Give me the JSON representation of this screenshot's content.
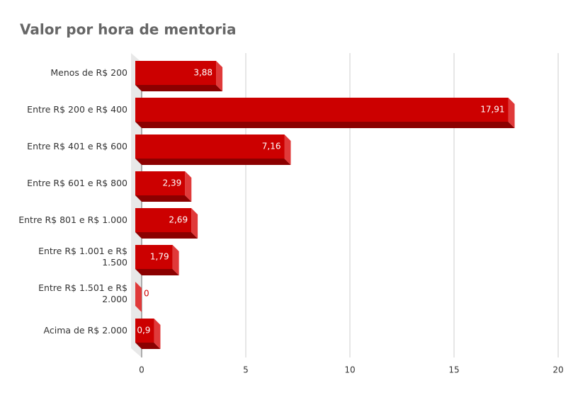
{
  "chart_data": {
    "type": "bar",
    "orientation": "horizontal",
    "title": "Valor por hora de mentoria",
    "categories": [
      "Menos de R$ 200",
      "Entre R$ 200 e R$ 400",
      "Entre R$ 401 e R$ 600",
      "Entre R$ 601 e R$ 800",
      "Entre R$ 801 e R$ 1.000",
      "Entre R$ 1.001 e R$ 1.500",
      "Entre R$ 1.501 e R$ 2.000",
      "Acima de R$ 2.000"
    ],
    "values": [
      3.88,
      17.91,
      7.16,
      2.39,
      2.69,
      1.79,
      0,
      0.9
    ],
    "value_labels": [
      "3,88",
      "17,91",
      "7,16",
      "2,39",
      "2,69",
      "1,79",
      "0",
      "0,9"
    ],
    "color": "#cc0000",
    "xlim": [
      0,
      20
    ],
    "xticks": [
      0,
      5,
      10,
      15,
      20
    ],
    "grid": true
  }
}
